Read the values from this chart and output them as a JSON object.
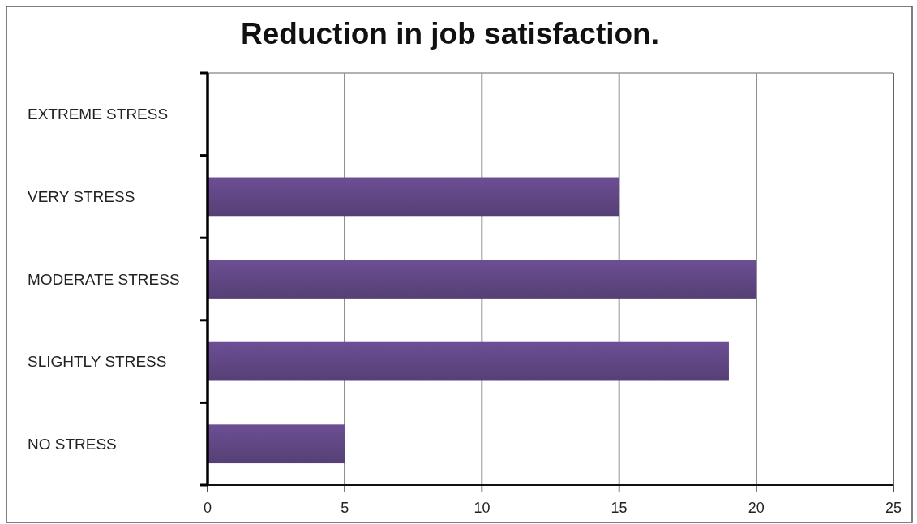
{
  "chart_data": {
    "type": "bar",
    "orientation": "horizontal",
    "title": "Reduction in job satisfaction.",
    "categories": [
      "EXTREME STRESS",
      "VERY STRESS",
      "MODERATE STRESS",
      "SLIGHTLY STRESS",
      "NO STRESS"
    ],
    "values": [
      0,
      15,
      20,
      19,
      5
    ],
    "color": "#614785",
    "xlim": [
      0,
      25
    ],
    "xticks": [
      0,
      5,
      10,
      15,
      20,
      25
    ],
    "grid": "x"
  }
}
